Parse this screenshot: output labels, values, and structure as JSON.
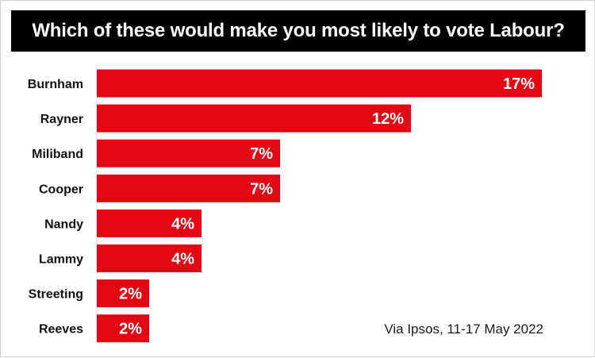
{
  "title": "Which of these would make you most likely to vote Labour?",
  "footnote": "Via Ipsos, 11-17 May 2022",
  "colors": {
    "bar": "#e30613",
    "title_bg": "#000000",
    "bar_label": "#ffffff"
  },
  "chart_data": {
    "type": "bar",
    "orientation": "horizontal",
    "title": "Which of these would make you most likely to vote Labour?",
    "categories": [
      "Burnham",
      "Rayner",
      "Miliband",
      "Cooper",
      "Nandy",
      "Lammy",
      "Streeting",
      "Reeves"
    ],
    "values": [
      17,
      12,
      7,
      7,
      4,
      4,
      2,
      2
    ],
    "value_labels": [
      "17%",
      "12%",
      "7%",
      "7%",
      "4%",
      "4%",
      "2%",
      "2%"
    ],
    "xlim": [
      0,
      17
    ],
    "grid": false,
    "legend": "none"
  }
}
